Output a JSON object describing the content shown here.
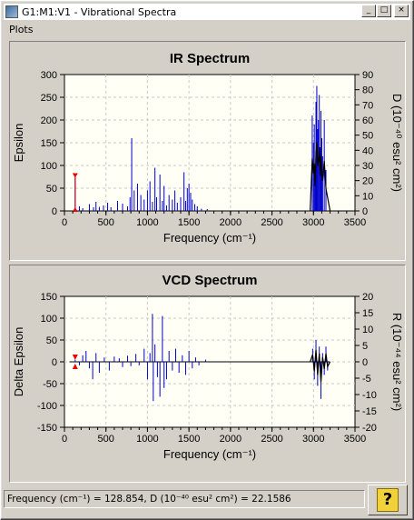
{
  "window": {
    "title": "G1:M1:V1 - Vibrational Spectra",
    "title_icon": "spectrum-app-icon"
  },
  "title_buttons": {
    "minimize": "_",
    "maximize": "□",
    "close": "×"
  },
  "menu": {
    "items": [
      "Plots"
    ]
  },
  "status": {
    "text": "Frequency (cm⁻¹) = 128.854, D (10⁻⁴⁰ esu² cm²) = 22.1586"
  },
  "help_button": {
    "label": "?"
  },
  "chart_data": [
    {
      "type": "line",
      "title": "IR Spectrum",
      "xlabel": "Frequency (cm⁻¹)",
      "ylabel": "Epsilon",
      "y2label": "D (10⁻⁴⁰ esu² cm²)",
      "xlim": [
        0,
        3500
      ],
      "ylim": [
        0,
        300
      ],
      "y2lim": [
        0,
        90
      ],
      "xticks": [
        0,
        500,
        1000,
        1500,
        2000,
        2500,
        3000,
        3500
      ],
      "yticks": [
        0,
        50,
        100,
        150,
        200,
        250,
        300
      ],
      "y2ticks": [
        0,
        10,
        20,
        30,
        40,
        50,
        60,
        70,
        80,
        90
      ],
      "grid": true,
      "sticks": [
        [
          129,
          75
        ],
        [
          180,
          10
        ],
        [
          220,
          6
        ],
        [
          300,
          15
        ],
        [
          350,
          8
        ],
        [
          380,
          20
        ],
        [
          420,
          9
        ],
        [
          470,
          12
        ],
        [
          520,
          18
        ],
        [
          560,
          8
        ],
        [
          640,
          22
        ],
        [
          700,
          16
        ],
        [
          760,
          10
        ],
        [
          790,
          30
        ],
        [
          810,
          160
        ],
        [
          840,
          45
        ],
        [
          880,
          60
        ],
        [
          920,
          35
        ],
        [
          960,
          25
        ],
        [
          1000,
          45
        ],
        [
          1030,
          65
        ],
        [
          1060,
          20
        ],
        [
          1090,
          95
        ],
        [
          1110,
          30
        ],
        [
          1150,
          80
        ],
        [
          1180,
          22
        ],
        [
          1200,
          55
        ],
        [
          1230,
          12
        ],
        [
          1260,
          35
        ],
        [
          1300,
          25
        ],
        [
          1330,
          45
        ],
        [
          1360,
          18
        ],
        [
          1400,
          30
        ],
        [
          1440,
          85
        ],
        [
          1460,
          22
        ],
        [
          1480,
          50
        ],
        [
          1500,
          60
        ],
        [
          1520,
          40
        ],
        [
          1540,
          25
        ],
        [
          1570,
          15
        ],
        [
          1600,
          10
        ],
        [
          1650,
          5
        ],
        [
          1720,
          4
        ],
        [
          2985,
          210
        ],
        [
          3000,
          150
        ],
        [
          3010,
          190
        ],
        [
          3020,
          100
        ],
        [
          3030,
          240
        ],
        [
          3040,
          275
        ],
        [
          3050,
          180
        ],
        [
          3060,
          200
        ],
        [
          3070,
          255
        ],
        [
          3080,
          140
        ],
        [
          3090,
          220
        ],
        [
          3100,
          160
        ],
        [
          3110,
          120
        ],
        [
          3130,
          200
        ],
        [
          3150,
          90
        ]
      ],
      "marker": {
        "x": 129,
        "y": 75
      }
    },
    {
      "type": "line",
      "title": "VCD Spectrum",
      "xlabel": "Frequency (cm⁻¹)",
      "ylabel": "Delta Epsilon",
      "y2label": "R (10⁻⁴⁴ esu² cm²)",
      "xlim": [
        0,
        3500
      ],
      "ylim": [
        -150,
        150
      ],
      "y2lim": [
        -20,
        20
      ],
      "xticks": [
        0,
        500,
        1000,
        1500,
        2000,
        2500,
        3000,
        3500
      ],
      "yticks": [
        -150,
        -100,
        -50,
        0,
        50,
        100,
        150
      ],
      "y2ticks": [
        -20,
        -15,
        -10,
        -5,
        0,
        5,
        10,
        15,
        20
      ],
      "grid": true,
      "sticks": [
        [
          129,
          5
        ],
        [
          180,
          -8
        ],
        [
          220,
          15
        ],
        [
          260,
          25
        ],
        [
          300,
          -15
        ],
        [
          340,
          -40
        ],
        [
          380,
          20
        ],
        [
          420,
          -25
        ],
        [
          480,
          10
        ],
        [
          540,
          -20
        ],
        [
          600,
          12
        ],
        [
          660,
          8
        ],
        [
          700,
          -12
        ],
        [
          760,
          14
        ],
        [
          800,
          -10
        ],
        [
          860,
          18
        ],
        [
          900,
          -8
        ],
        [
          960,
          30
        ],
        [
          1000,
          -40
        ],
        [
          1030,
          20
        ],
        [
          1060,
          110
        ],
        [
          1070,
          -90
        ],
        [
          1090,
          40
        ],
        [
          1120,
          -35
        ],
        [
          1150,
          -80
        ],
        [
          1180,
          105
        ],
        [
          1200,
          -60
        ],
        [
          1230,
          -40
        ],
        [
          1260,
          25
        ],
        [
          1300,
          -20
        ],
        [
          1340,
          30
        ],
        [
          1380,
          -25
        ],
        [
          1420,
          15
        ],
        [
          1460,
          -30
        ],
        [
          1500,
          25
        ],
        [
          1540,
          -15
        ],
        [
          1580,
          10
        ],
        [
          1620,
          -8
        ],
        [
          1700,
          5
        ],
        [
          2990,
          30
        ],
        [
          3010,
          -40
        ],
        [
          3030,
          50
        ],
        [
          3050,
          -55
        ],
        [
          3070,
          35
        ],
        [
          3090,
          -85
        ],
        [
          3110,
          20
        ],
        [
          3130,
          -30
        ],
        [
          3150,
          35
        ],
        [
          3170,
          -20
        ]
      ],
      "marker": {
        "x": 129,
        "y": 0
      }
    }
  ]
}
